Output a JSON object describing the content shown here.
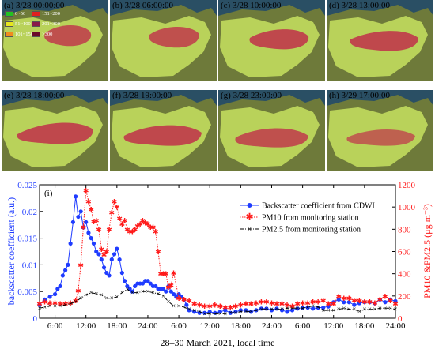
{
  "panels": [
    {
      "label": "(a) 3/28 00:00:00"
    },
    {
      "label": "(b) 3/28 06:00:00"
    },
    {
      "label": "(c) 3/28 10:00:00"
    },
    {
      "label": "(d) 3/28 13:00:00"
    },
    {
      "label": "(e) 3/28 18:00:00"
    },
    {
      "label": "(f) 3/28 19:00:00"
    },
    {
      "label": "(g) 3/28 23:00:00"
    },
    {
      "label": "(h) 3/29 17:00:00"
    }
  ],
  "map_legend": [
    {
      "label": "0~50",
      "color": "#22c322"
    },
    {
      "label": "151~200",
      "color": "#e02020"
    },
    {
      "label": "51~100",
      "color": "#e6e61e"
    },
    {
      "label": "201~300",
      "color": "#8a1a4a"
    },
    {
      "label": "101~150",
      "color": "#f08c1e"
    },
    {
      "label": ">300",
      "color": "#6a0a2a"
    }
  ],
  "colors": {
    "blue": "#1f3cff",
    "red": "#ff1a1a",
    "black": "#000000"
  },
  "chart_data": {
    "type": "line",
    "panel_label": "(i)",
    "xlabel": "28–30 March 2021, local time",
    "ylabel_left": "backscatter coefficient (a.u.)",
    "ylabel_right": "PM10 &PM2.5 (μg m⁻³)",
    "x_ticklabels": [
      "6:00",
      "12:00",
      "18:00",
      "24:00",
      "6:00",
      "12:00",
      "18:00",
      "24:00",
      "6:00",
      "12:00",
      "18:00",
      "24:00"
    ],
    "y_left_ticks": [
      "0.025",
      "0.02",
      "0.015",
      "0.01",
      "0.005",
      "0"
    ],
    "y_right_ticks": [
      "1200",
      "1000",
      "800",
      "600",
      "400",
      "200",
      "0"
    ],
    "ylim_left": [
      0,
      0.025
    ],
    "ylim_right": [
      0,
      1200
    ],
    "xlim_hours": [
      3,
      72
    ],
    "legend": [
      "Backscatter coefficient from CDWL",
      "PM10 from monitoring station",
      "PM2.5 from monitoring station"
    ],
    "series": [
      {
        "name": "Backscatter coefficient from CDWL",
        "axis": "left",
        "x": [
          3,
          4,
          5,
          6,
          6.5,
          7,
          7.5,
          8,
          8.5,
          9,
          9.5,
          10,
          10.5,
          11,
          11.5,
          12,
          12.5,
          13,
          13.5,
          14,
          14.5,
          15,
          15.5,
          16,
          16.5,
          17,
          17.5,
          18,
          18.5,
          19,
          19.5,
          20,
          20.5,
          21,
          21.5,
          22,
          22.5,
          23,
          23.5,
          24,
          24.5,
          25,
          25.5,
          26,
          26.5,
          27,
          27.5,
          28,
          28.5,
          29,
          29.5,
          30,
          30.5,
          31,
          31.5,
          32,
          33,
          34,
          35,
          36,
          37,
          38,
          39,
          40,
          41,
          42,
          43,
          44,
          45,
          46,
          47,
          48,
          49,
          50,
          51,
          52,
          53,
          54,
          55,
          56,
          57,
          58,
          59,
          60,
          61,
          62,
          63,
          64,
          65,
          66,
          67,
          68,
          69,
          70,
          71,
          72
        ],
        "values": [
          0.0025,
          0.0035,
          0.004,
          0.0045,
          0.0055,
          0.006,
          0.008,
          0.009,
          0.01,
          0.014,
          0.018,
          0.0228,
          0.019,
          0.02,
          0.017,
          0.018,
          0.016,
          0.015,
          0.014,
          0.0125,
          0.012,
          0.011,
          0.0095,
          0.0085,
          0.008,
          0.011,
          0.012,
          0.013,
          0.011,
          0.0085,
          0.007,
          0.006,
          0.0055,
          0.005,
          0.006,
          0.0065,
          0.0065,
          0.0065,
          0.007,
          0.007,
          0.0065,
          0.006,
          0.006,
          0.0055,
          0.0055,
          0.0055,
          0.005,
          0.006,
          0.005,
          0.0045,
          0.004,
          0.0045,
          0.004,
          0.0035,
          0.0025,
          0.0015,
          0.0012,
          0.001,
          0.001,
          0.0012,
          0.001,
          0.0012,
          0.0015,
          0.001,
          0.0012,
          0.0015,
          0.0015,
          0.0012,
          0.0015,
          0.0018,
          0.0018,
          0.0015,
          0.0018,
          0.0015,
          0.0012,
          0.0015,
          0.0018,
          0.002,
          0.002,
          0.0018,
          0.002,
          0.002,
          0.0022,
          0.003,
          0.0035,
          0.003,
          0.003,
          0.0025,
          0.0028,
          0.003,
          0.003,
          0.0028,
          0.0035,
          0.003,
          0.0035,
          0.0032
        ]
      },
      {
        "name": "PM10 from monitoring station",
        "axis": "right",
        "x": [
          3,
          4,
          5,
          6,
          7,
          8,
          9,
          10,
          10.5,
          11,
          11.5,
          12,
          12.5,
          13,
          13.5,
          14,
          14.5,
          15,
          15.5,
          16,
          16.5,
          17,
          17.5,
          18,
          18.5,
          19,
          19.5,
          20,
          20.5,
          21,
          21.5,
          22,
          22.5,
          23,
          23.5,
          24,
          24.5,
          25,
          25.5,
          26,
          26.5,
          27,
          27.5,
          28,
          28.5,
          29,
          30,
          31,
          32,
          33,
          34,
          35,
          36,
          37,
          38,
          39,
          40,
          41,
          42,
          43,
          44,
          45,
          46,
          47,
          48,
          49,
          50,
          51,
          52,
          53,
          54,
          55,
          56,
          57,
          58,
          59,
          60,
          61,
          62,
          63,
          64,
          65,
          66,
          67,
          68,
          69,
          70,
          71,
          72
        ],
        "values": [
          130,
          150,
          140,
          140,
          130,
          130,
          140,
          160,
          250,
          480,
          820,
          1150,
          1050,
          980,
          870,
          880,
          800,
          620,
          570,
          600,
          800,
          950,
          1050,
          1000,
          900,
          850,
          880,
          800,
          780,
          780,
          800,
          830,
          850,
          880,
          860,
          850,
          820,
          820,
          780,
          600,
          400,
          400,
          400,
          280,
          300,
          410,
          180,
          170,
          160,
          130,
          120,
          110,
          110,
          120,
          110,
          100,
          100,
          110,
          120,
          130,
          130,
          140,
          150,
          150,
          140,
          130,
          130,
          120,
          110,
          130,
          140,
          140,
          150,
          150,
          160,
          130,
          130,
          200,
          180,
          180,
          160,
          160,
          150,
          150,
          140,
          170,
          200,
          160,
          130
        ]
      },
      {
        "name": "PM2.5 from monitoring station",
        "axis": "right",
        "x": [
          3,
          4,
          5,
          6,
          7,
          8,
          9,
          10,
          11,
          12,
          13,
          14,
          15,
          16,
          17,
          18,
          19,
          20,
          21,
          22,
          23,
          24,
          25,
          26,
          27,
          28,
          29,
          30,
          31,
          32,
          33,
          34,
          35,
          36,
          37,
          38,
          39,
          40,
          41,
          42,
          43,
          44,
          45,
          46,
          47,
          48,
          49,
          50,
          51,
          52,
          53,
          54,
          55,
          56,
          57,
          58,
          59,
          60,
          61,
          62,
          63,
          64,
          65,
          66,
          67,
          68,
          69,
          70,
          71,
          72
        ],
        "values": [
          90,
          100,
          110,
          110,
          110,
          120,
          130,
          150,
          180,
          210,
          230,
          220,
          210,
          180,
          180,
          190,
          230,
          260,
          230,
          230,
          240,
          240,
          230,
          220,
          200,
          150,
          110,
          110,
          100,
          80,
          70,
          60,
          40,
          40,
          40,
          40,
          40,
          50,
          50,
          60,
          60,
          60,
          70,
          80,
          80,
          80,
          80,
          80,
          90,
          90,
          90,
          90,
          100,
          110,
          100,
          70,
          70,
          70,
          80,
          90,
          80,
          80,
          60,
          80,
          80,
          80,
          90,
          90,
          90,
          80
        ]
      }
    ]
  }
}
